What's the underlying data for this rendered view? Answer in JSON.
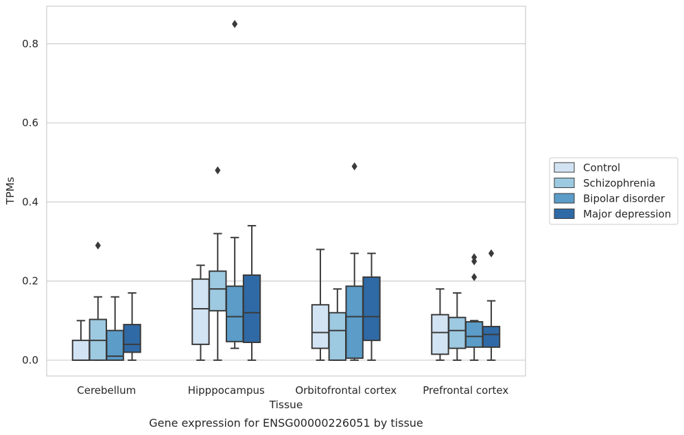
{
  "chart_data": {
    "type": "box",
    "xlabel": "Tissue",
    "ylabel": "TPMs",
    "caption": "Gene expression for ENSG00000226051 by tissue",
    "ylim": [
      -0.04,
      0.895
    ],
    "yticks": [
      "0.0",
      "0.2",
      "0.4",
      "0.6",
      "0.8"
    ],
    "grid": "horizontal",
    "legend_position": "right",
    "categories": [
      "Cerebellum",
      "Hipppocampus",
      "Orbitofrontal cortex",
      "Prefrontal cortex"
    ],
    "series": [
      {
        "name": "Control",
        "color": "#d2e3f3",
        "boxes": [
          {
            "whislo": 0.0,
            "q1": 0.0,
            "med": 0.0,
            "q3": 0.05,
            "whishi": 0.1,
            "fliers": []
          },
          {
            "whislo": 0.0,
            "q1": 0.04,
            "med": 0.13,
            "q3": 0.205,
            "whishi": 0.24,
            "fliers": []
          },
          {
            "whislo": 0.0,
            "q1": 0.03,
            "med": 0.07,
            "q3": 0.14,
            "whishi": 0.28,
            "fliers": []
          },
          {
            "whislo": 0.0,
            "q1": 0.015,
            "med": 0.07,
            "q3": 0.115,
            "whishi": 0.18,
            "fliers": []
          }
        ]
      },
      {
        "name": "Schizophrenia",
        "color": "#9dc9e1",
        "boxes": [
          {
            "whislo": 0.0,
            "q1": 0.0,
            "med": 0.05,
            "q3": 0.103,
            "whishi": 0.16,
            "fliers": [
              0.29
            ]
          },
          {
            "whislo": 0.0,
            "q1": 0.125,
            "med": 0.18,
            "q3": 0.225,
            "whishi": 0.32,
            "fliers": [
              0.48
            ]
          },
          {
            "whislo": 0.0,
            "q1": 0.0,
            "med": 0.075,
            "q3": 0.12,
            "whishi": 0.18,
            "fliers": []
          },
          {
            "whislo": 0.0,
            "q1": 0.03,
            "med": 0.075,
            "q3": 0.108,
            "whishi": 0.17,
            "fliers": []
          }
        ]
      },
      {
        "name": "Bipolar disorder",
        "color": "#5b9cc8",
        "boxes": [
          {
            "whislo": 0.0,
            "q1": 0.0,
            "med": 0.01,
            "q3": 0.075,
            "whishi": 0.16,
            "fliers": []
          },
          {
            "whislo": 0.03,
            "q1": 0.047,
            "med": 0.11,
            "q3": 0.187,
            "whishi": 0.31,
            "fliers": [
              0.85
            ]
          },
          {
            "whislo": 0.0,
            "q1": 0.005,
            "med": 0.11,
            "q3": 0.187,
            "whishi": 0.27,
            "fliers": [
              0.49
            ]
          },
          {
            "whislo": 0.0,
            "q1": 0.033,
            "med": 0.06,
            "q3": 0.097,
            "whishi": 0.1,
            "fliers": [
              0.21,
              0.25,
              0.26
            ]
          }
        ]
      },
      {
        "name": "Major depression",
        "color": "#2f6aa6",
        "boxes": [
          {
            "whislo": 0.0,
            "q1": 0.02,
            "med": 0.04,
            "q3": 0.09,
            "whishi": 0.17,
            "fliers": []
          },
          {
            "whislo": 0.0,
            "q1": 0.045,
            "med": 0.12,
            "q3": 0.215,
            "whishi": 0.34,
            "fliers": []
          },
          {
            "whislo": 0.0,
            "q1": 0.05,
            "med": 0.11,
            "q3": 0.21,
            "whishi": 0.27,
            "fliers": []
          },
          {
            "whislo": 0.0,
            "q1": 0.033,
            "med": 0.065,
            "q3": 0.085,
            "whishi": 0.15,
            "fliers": [
              0.27
            ]
          }
        ]
      }
    ]
  }
}
